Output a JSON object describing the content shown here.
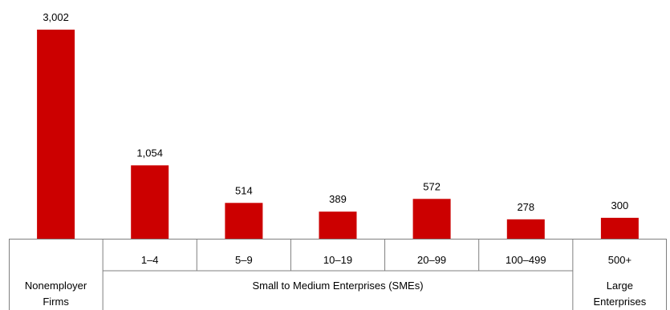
{
  "chart_data": {
    "type": "bar",
    "categories": [
      "Nonemployer Firms",
      "1–4",
      "5–9",
      "10–19",
      "20–99",
      "100–499",
      "500+"
    ],
    "values": [
      3002,
      1054,
      514,
      389,
      572,
      278,
      300
    ],
    "value_labels": [
      "3,002",
      "1,054",
      "514",
      "389",
      "572",
      "278",
      "300"
    ],
    "bar_color": "#cc0000",
    "grid": false,
    "legend": "none",
    "ylim": [
      0,
      3002
    ],
    "groups": [
      {
        "label_lines": [
          "Nonemployer",
          "Firms"
        ]
      },
      {
        "label_lines": [
          "Small to Medium Enterprises (SMEs)"
        ]
      },
      {
        "label_lines": [
          "Large",
          "Enterprises"
        ]
      }
    ]
  }
}
